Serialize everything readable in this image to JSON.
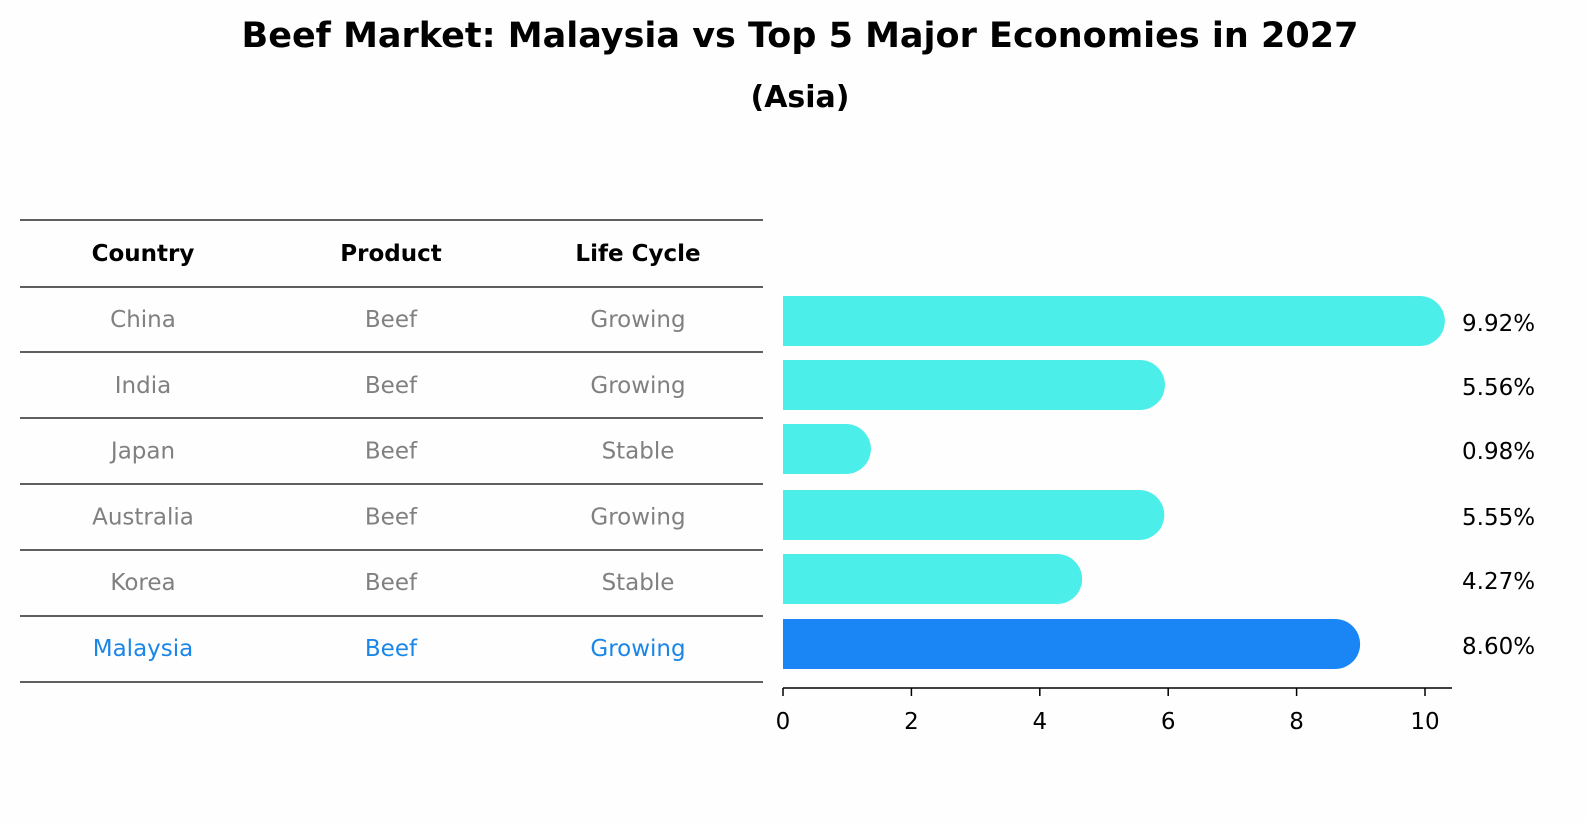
{
  "chart_data": {
    "type": "bar",
    "title": "Beef Market: Malaysia vs Top 5 Major Economies in 2027",
    "subtitle": "(Asia)",
    "table": {
      "headers": [
        "Country",
        "Product",
        "Life Cycle"
      ],
      "rows": [
        [
          "China",
          "Beef",
          "Growing"
        ],
        [
          "India",
          "Beef",
          "Growing"
        ],
        [
          "Japan",
          "Beef",
          "Stable"
        ],
        [
          "Australia",
          "Beef",
          "Growing"
        ],
        [
          "Korea",
          "Beef",
          "Stable"
        ],
        [
          "Malaysia",
          "Beef",
          "Growing"
        ]
      ]
    },
    "categories": [
      "China",
      "India",
      "Japan",
      "Australia",
      "Korea",
      "Malaysia"
    ],
    "values": [
      9.92,
      5.56,
      0.98,
      5.55,
      4.27,
      8.6
    ],
    "value_labels": [
      "9.92%",
      "5.56%",
      "0.98%",
      "5.55%",
      "4.27%",
      "8.60%"
    ],
    "highlight": "Malaysia",
    "xlim": [
      0,
      10.4
    ],
    "xticks": [
      0,
      2,
      4,
      6,
      8,
      10
    ],
    "xlabel": "",
    "ylabel": "",
    "colors": {
      "default": "#4beee9",
      "highlight": "#1a86f5",
      "text_default": "#808080",
      "text_highlight": "#1a86e8"
    }
  }
}
